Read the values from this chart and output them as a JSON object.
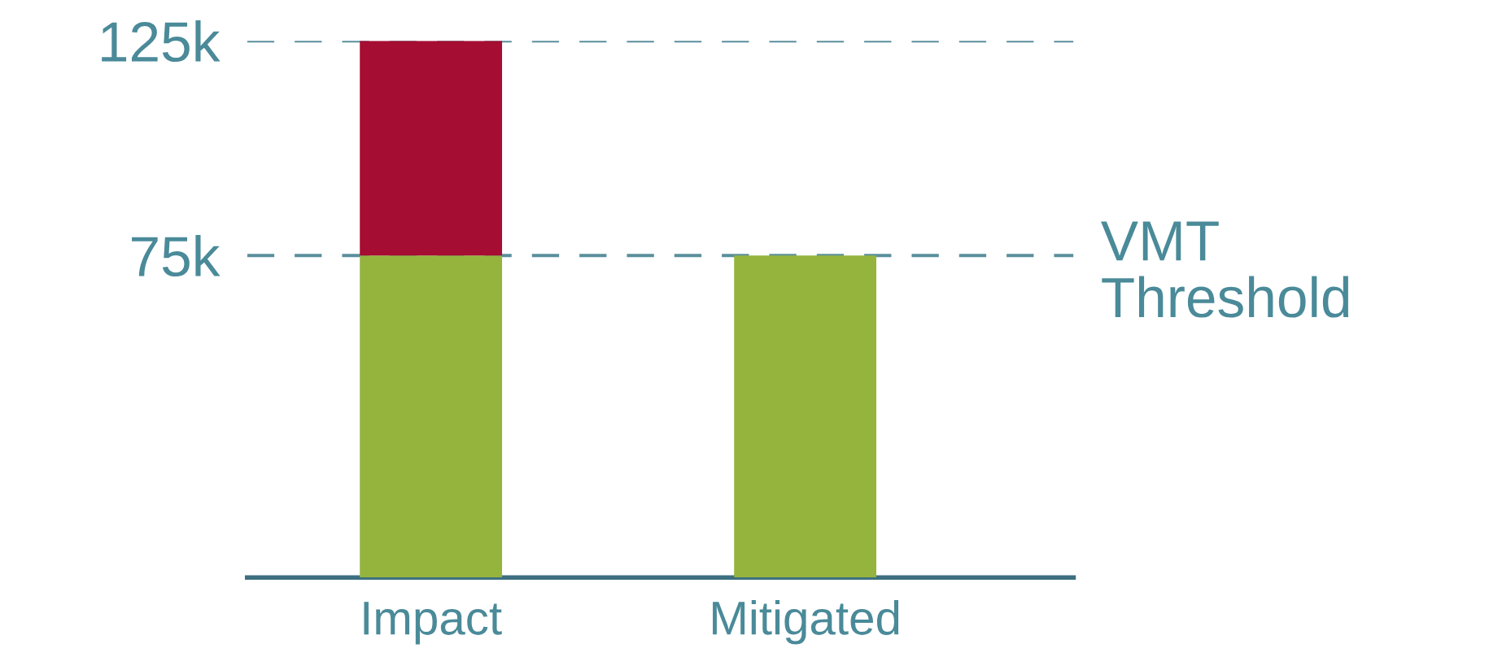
{
  "chart_data": {
    "type": "bar",
    "stacked": true,
    "categories": [
      "Impact",
      "Mitigated"
    ],
    "series": [
      {
        "color": "#94b43e",
        "values": [
          75000,
          75000
        ]
      },
      {
        "color": "#a50d32",
        "values": [
          50000,
          0
        ]
      }
    ],
    "ylim": [
      0,
      125000
    ],
    "yticks": [
      {
        "value": 75000,
        "label": "75k"
      },
      {
        "value": 125000,
        "label": "125k"
      }
    ],
    "ref_lines": [
      {
        "axis": "y",
        "value": 75000,
        "label": "VMT\nThreshold",
        "color": "#5a8f9c",
        "line_style": "dashed"
      },
      {
        "axis": "y",
        "value": 125000,
        "color": "#5a8f9c",
        "line_style": "dashed"
      }
    ],
    "legend": false
  }
}
